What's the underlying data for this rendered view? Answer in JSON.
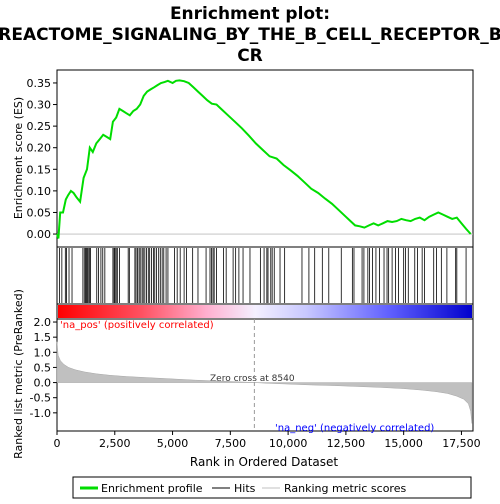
{
  "chart_data": {
    "type": "line",
    "title_lines": [
      "Enrichment plot:",
      "REACTOME_SIGNALING_BY_THE_B_CELL_RECEPTOR_B",
      "CR"
    ],
    "xlabel": "Rank in Ordered Dataset",
    "top_panel": {
      "ylabel": "Enrichment score (ES)",
      "ylim": [
        -0.03,
        0.38
      ],
      "yticks": [
        0.0,
        0.05,
        0.1,
        0.15,
        0.2,
        0.25,
        0.3,
        0.35
      ],
      "ytick_labels": [
        "0.00",
        "0.05",
        "0.10",
        "0.15",
        "0.20",
        "0.25",
        "0.30",
        "0.35"
      ],
      "series": [
        {
          "name": "Enrichment profile",
          "color": "#00dd00",
          "x": [
            0,
            60,
            140,
            260,
            380,
            480,
            600,
            720,
            850,
            1000,
            1150,
            1300,
            1420,
            1550,
            1700,
            1850,
            2000,
            2150,
            2300,
            2420,
            2560,
            2700,
            2850,
            3000,
            3150,
            3300,
            3450,
            3600,
            3750,
            3900,
            4050,
            4200,
            4350,
            4500,
            4650,
            4800,
            5000,
            5150,
            5300,
            5500,
            5700,
            5900,
            6100,
            6300,
            6500,
            6700,
            6900,
            7100,
            7400,
            7700,
            8000,
            8300,
            8600,
            8900,
            9200,
            9500,
            9800,
            10100,
            10400,
            10700,
            11000,
            11300,
            11600,
            11900,
            12200,
            12500,
            12700,
            12900,
            13100,
            13300,
            13500,
            13700,
            13900,
            14100,
            14300,
            14500,
            14700,
            14900,
            15100,
            15300,
            15500,
            15700,
            15900,
            16100,
            16300,
            16500,
            16700,
            16900,
            17100,
            17300,
            17500,
            17700,
            17900
          ],
          "y": [
            0.0,
            -0.01,
            0.05,
            0.05,
            0.08,
            0.09,
            0.1,
            0.095,
            0.085,
            0.075,
            0.13,
            0.15,
            0.2,
            0.19,
            0.21,
            0.22,
            0.23,
            0.225,
            0.22,
            0.26,
            0.27,
            0.29,
            0.285,
            0.28,
            0.275,
            0.285,
            0.29,
            0.3,
            0.32,
            0.33,
            0.335,
            0.34,
            0.345,
            0.35,
            0.352,
            0.355,
            0.35,
            0.355,
            0.356,
            0.354,
            0.35,
            0.34,
            0.33,
            0.32,
            0.31,
            0.302,
            0.3,
            0.29,
            0.275,
            0.26,
            0.245,
            0.228,
            0.21,
            0.195,
            0.18,
            0.175,
            0.16,
            0.148,
            0.135,
            0.12,
            0.105,
            0.095,
            0.082,
            0.07,
            0.055,
            0.04,
            0.03,
            0.02,
            0.018,
            0.015,
            0.02,
            0.025,
            0.02,
            0.025,
            0.03,
            0.028,
            0.03,
            0.035,
            0.032,
            0.03,
            0.035,
            0.038,
            0.032,
            0.04,
            0.045,
            0.05,
            0.045,
            0.04,
            0.035,
            0.038,
            0.025,
            0.012,
            0.0
          ]
        }
      ]
    },
    "bottom_panel": {
      "ylabel": "Ranked list metric (PreRanked)",
      "ylim": [
        -1.6,
        2.1
      ],
      "yticks": [
        -1.0,
        -0.5,
        0.0,
        0.5,
        1.0,
        1.5,
        2.0
      ],
      "ytick_labels": [
        "-1.0",
        "-0.5",
        "0.0",
        "0.5",
        "1.0",
        "1.5",
        "2.0"
      ],
      "series": [
        {
          "name": "Ranking metric scores",
          "color": "#c0c0c0",
          "x": [
            0,
            50,
            150,
            300,
            500,
            800,
            1200,
            1700,
            2300,
            3000,
            4000,
            5000,
            6000,
            7000,
            8000,
            8540,
            9000,
            10000,
            11000,
            12000,
            13000,
            14000,
            15000,
            15800,
            16400,
            16900,
            17300,
            17600,
            17800,
            17900,
            17950
          ],
          "y": [
            1.35,
            0.9,
            0.72,
            0.6,
            0.5,
            0.42,
            0.35,
            0.29,
            0.24,
            0.2,
            0.16,
            0.12,
            0.08,
            0.05,
            0.02,
            0.0,
            -0.02,
            -0.05,
            -0.08,
            -0.1,
            -0.13,
            -0.16,
            -0.2,
            -0.25,
            -0.3,
            -0.36,
            -0.45,
            -0.55,
            -0.7,
            -0.95,
            -1.35
          ]
        }
      ],
      "annotations": {
        "zero_cross": "Zero cross at 8540",
        "zero_cross_x": 8540,
        "pos_label": "'na_pos' (positively correlated)",
        "neg_label": "'na_neg' (negatively correlated)"
      }
    },
    "hits": [
      110,
      210,
      360,
      410,
      520,
      650,
      1120,
      1180,
      1230,
      1270,
      1310,
      1350,
      1400,
      1450,
      1720,
      1800,
      1900,
      1980,
      2070,
      2420,
      2470,
      2510,
      2560,
      2610,
      2700,
      3080,
      3130,
      3370,
      3420,
      3480,
      3550,
      3600,
      3680,
      3730,
      3800,
      3870,
      3950,
      4010,
      4090,
      4170,
      4230,
      4310,
      4400,
      4470,
      4550,
      4620,
      4720,
      4800,
      5080,
      5200,
      5330,
      5500,
      5600,
      5870,
      6100,
      6450,
      6620,
      6680,
      6750,
      6800,
      6900,
      7200,
      7320,
      7620,
      7730,
      7870,
      8050,
      8350,
      8800,
      8960,
      9080,
      9130,
      9250,
      9310,
      9400,
      9650,
      9850,
      10600,
      10900,
      11150,
      11480,
      11760,
      12300,
      12780,
      12850,
      13200,
      13280,
      13450,
      13520,
      13650,
      13800,
      13950,
      14150,
      14280,
      14350,
      14500,
      14650,
      14780,
      15000,
      15080,
      15200,
      15480,
      15600,
      15800,
      15900,
      16300,
      16420,
      16630,
      16870,
      17250,
      17300,
      17700
    ],
    "xlim": [
      0,
      18000
    ],
    "xticks": [
      0,
      2500,
      5000,
      7500,
      10000,
      12500,
      15000,
      17500
    ],
    "xtick_labels": [
      "0",
      "2,500",
      "5,000",
      "7,500",
      "10,000",
      "12,500",
      "15,000",
      "17,500"
    ],
    "legend": {
      "placement": "bottom",
      "entries": [
        "Enrichment profile",
        "Hits",
        "Ranking metric scores"
      ]
    },
    "colors": {
      "profile": "#00dd00",
      "hit": "#000000",
      "metric": "#c0c0c0",
      "pos": "#ff0000",
      "neg": "#0000ff",
      "zero_line": "#999999"
    }
  }
}
